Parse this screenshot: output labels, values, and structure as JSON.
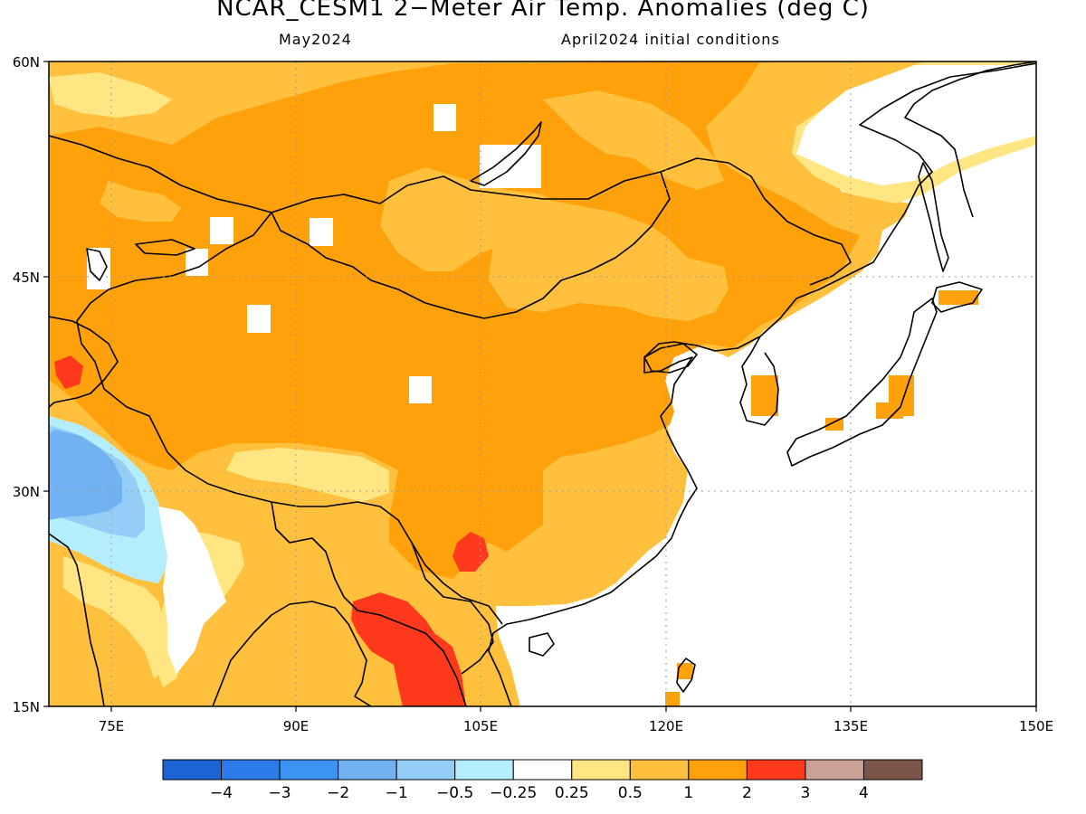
{
  "title": "NCAR_CESM1 2−Meter Air Temp. Anomalies (deg C)",
  "valid_month": "May2024",
  "init_label": "April2024 initial conditions",
  "map": {
    "lon_range": [
      70,
      150
    ],
    "lat_range": [
      15,
      60
    ],
    "lat_ticks": [
      {
        "label": "60N",
        "lat": 60
      },
      {
        "label": "45N",
        "lat": 45
      },
      {
        "label": "30N",
        "lat": 30
      },
      {
        "label": "15N",
        "lat": 15
      }
    ],
    "lon_ticks": [
      {
        "label": "75E",
        "lon": 75
      },
      {
        "label": "90E",
        "lon": 90
      },
      {
        "label": "105E",
        "lon": 105
      },
      {
        "label": "120E",
        "lon": 120
      },
      {
        "label": "135E",
        "lon": 135
      },
      {
        "label": "150E",
        "lon": 150
      }
    ]
  },
  "colorbar": {
    "colors": [
      "#1a64d4",
      "#2b7be8",
      "#3b94f2",
      "#72b2f2",
      "#94cdf6",
      "#b4eefc",
      "#ffffff",
      "#ffe682",
      "#ffc03e",
      "#ffa10a",
      "#ff3a1c",
      "#caa197",
      "#7a5548"
    ],
    "labels": [
      "−4",
      "−3",
      "−2",
      "−1",
      "−0.5",
      "−0.25",
      "0.25",
      "0.5",
      "1",
      "2",
      "3",
      "4"
    ]
  }
}
